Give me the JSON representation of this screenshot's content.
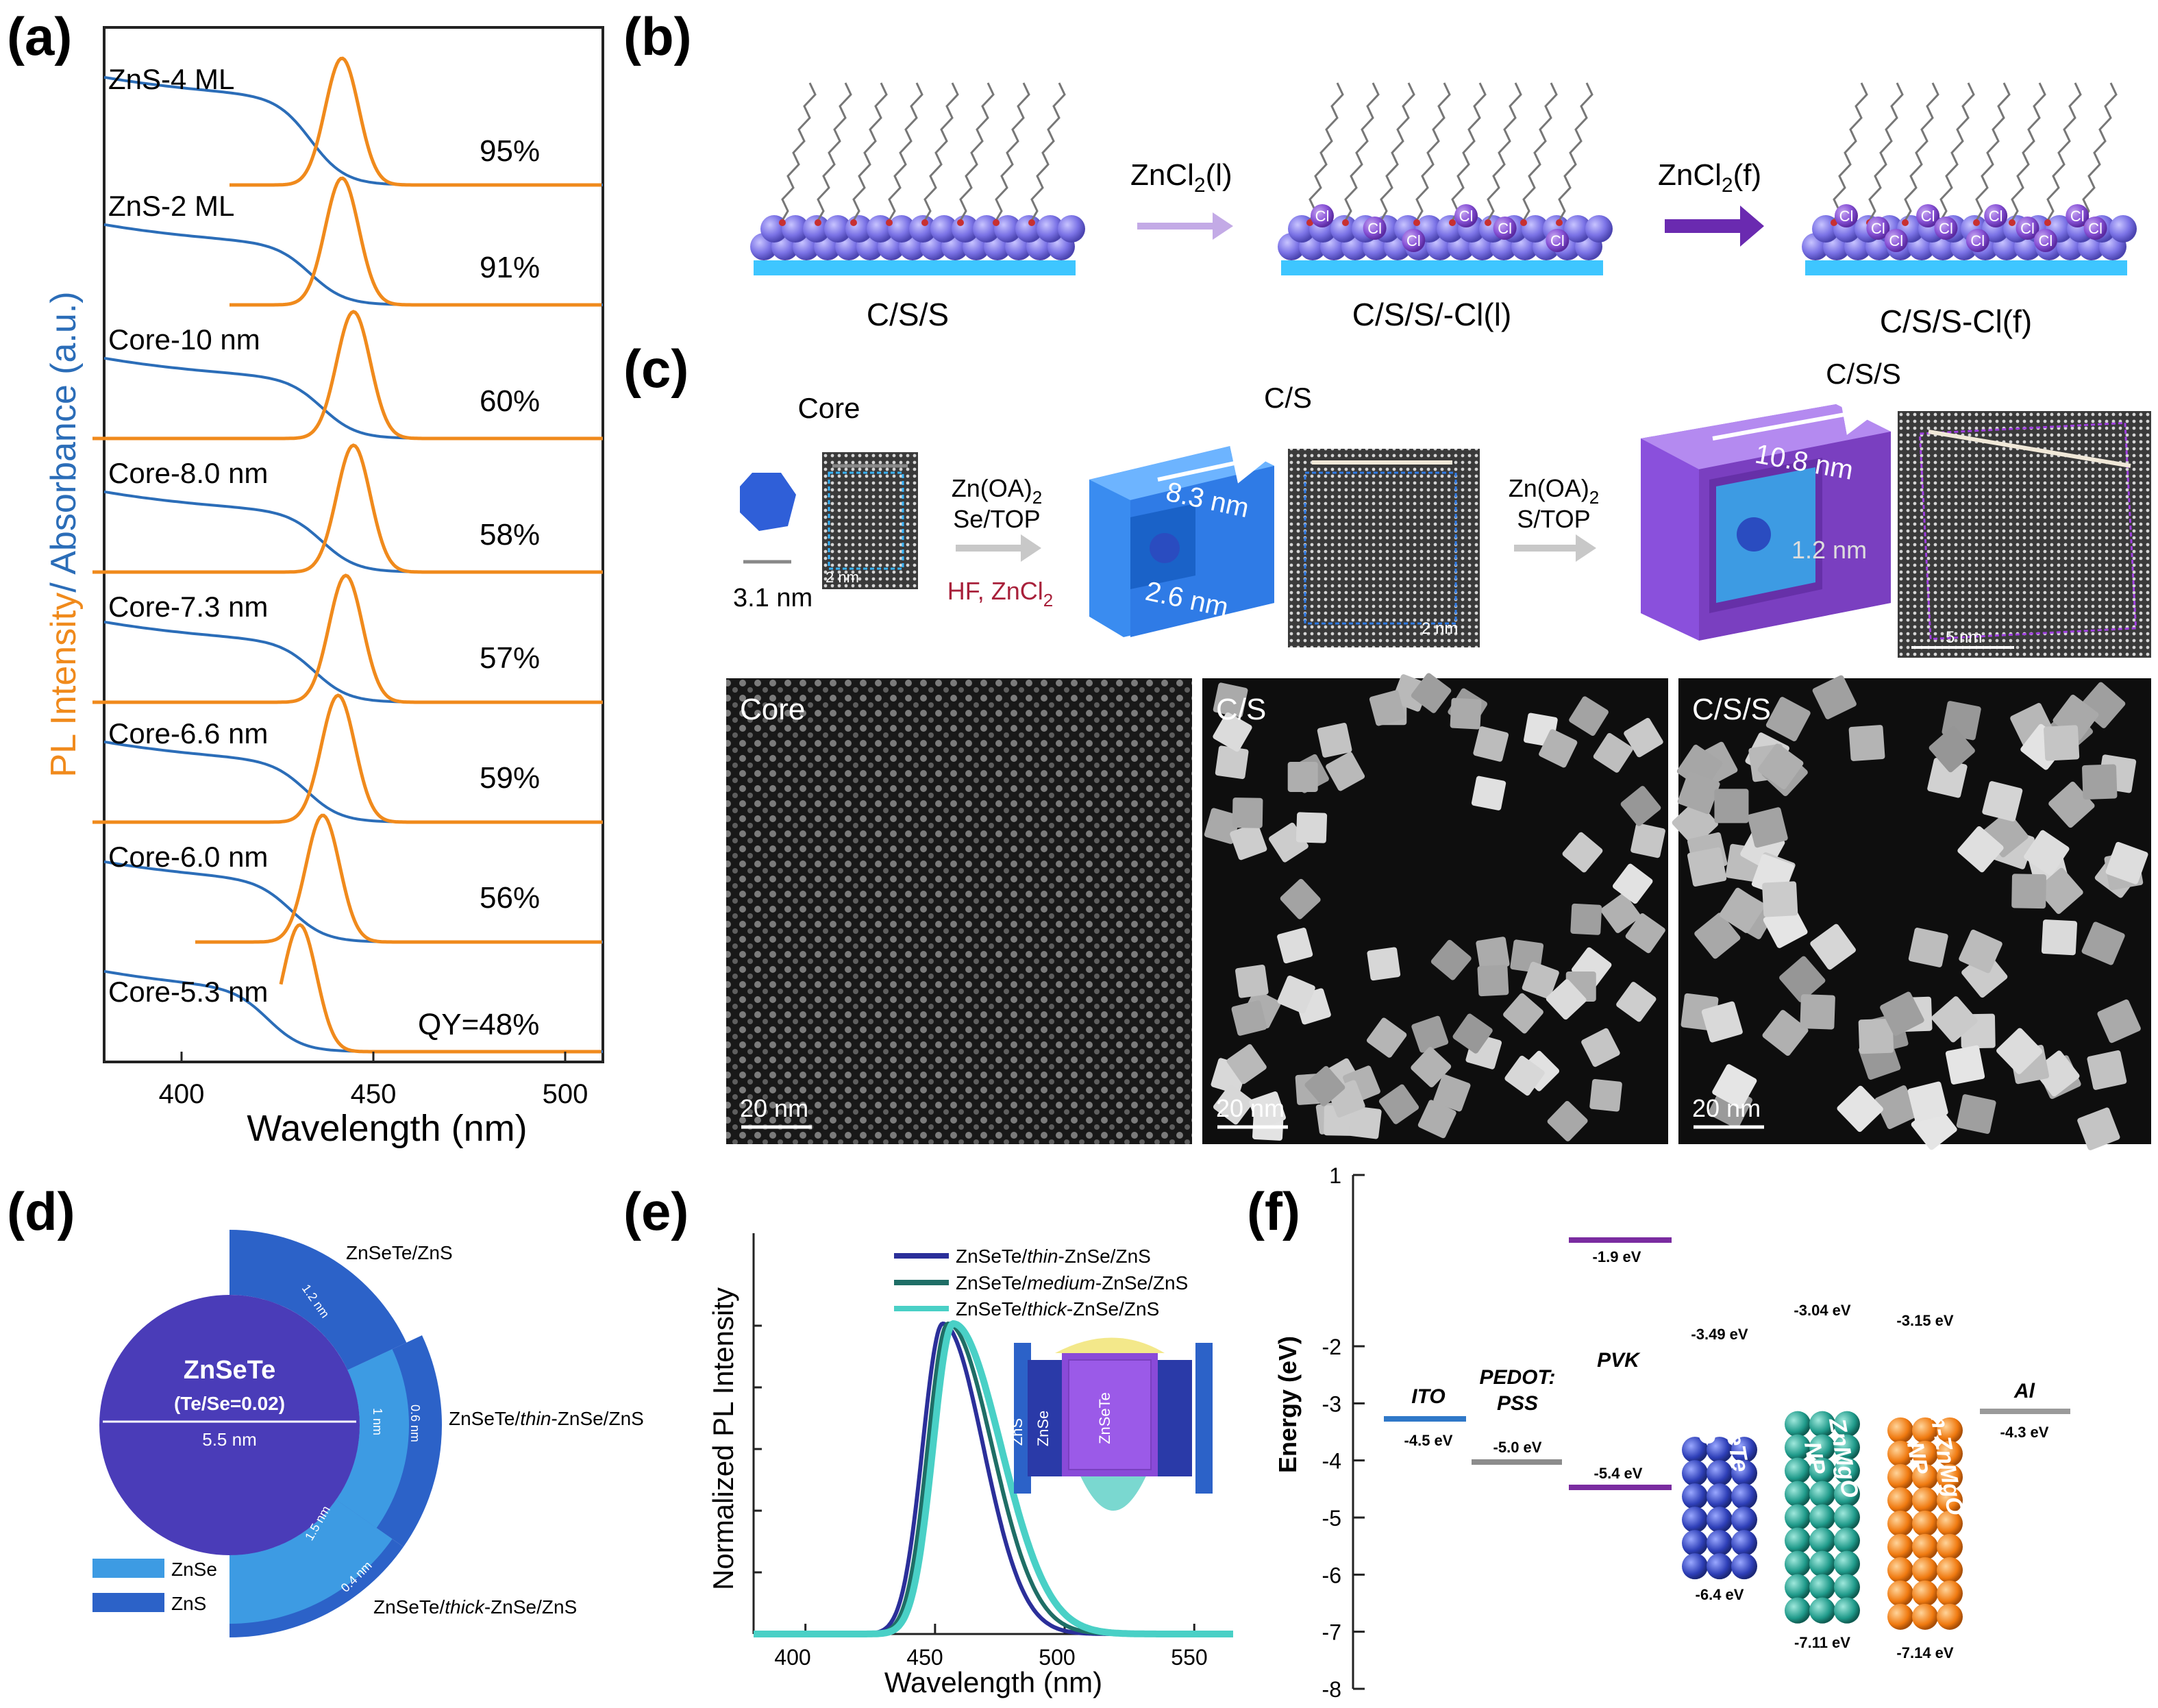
{
  "panel_labels": {
    "a": "(a)",
    "b": "(b)",
    "c": "(c)",
    "d": "(d)",
    "e": "(e)",
    "f": "(f)"
  },
  "colors": {
    "pl": "#f08a1c",
    "abs": "#2b6db8",
    "purple_shell": "#7a3fc0",
    "blue_shell": "#2f7be6",
    "zns_ring": "#2c62c8",
    "znse_ring": "#3d9be3",
    "core_disk": "#4a3cb8",
    "ito": "#2f78c8",
    "pedot": "#8c8c8c",
    "pvk": "#7a2ca0",
    "qd": "#2e3fb8",
    "znmgo": "#1f9a8a",
    "mznmgo": "#f07a10",
    "al": "#9a9a9a"
  },
  "panel_a": {
    "ylabel_pl": "PL Intensity",
    "ylabel_sep": "/ ",
    "ylabel_abs": "Absorbance (a.u.)",
    "xlabel": "Wavelength (nm)",
    "xticks": [
      "400",
      "450",
      "500"
    ],
    "samples": [
      {
        "name": "ZnS-4 ML",
        "qy": "95%"
      },
      {
        "name": "ZnS-2 ML",
        "qy": "91%"
      },
      {
        "name": "Core-10 nm",
        "qy": "60%"
      },
      {
        "name": "Core-8.0 nm",
        "qy": "58%"
      },
      {
        "name": "Core-7.3 nm",
        "qy": "57%"
      },
      {
        "name": "Core-6.6 nm",
        "qy": "59%"
      },
      {
        "name": "Core-6.0 nm",
        "qy": "56%"
      },
      {
        "name": "Core-5.3 nm",
        "qy": "QY=48%"
      }
    ]
  },
  "chart_data": [
    {
      "type": "line",
      "panel": "a",
      "xlabel": "Wavelength (nm)",
      "xlim": [
        380,
        510
      ],
      "series": [
        {
          "name": "ZnS-4 ML",
          "pl_peak_nm": 442,
          "qy": "95%"
        },
        {
          "name": "ZnS-2 ML",
          "pl_peak_nm": 442,
          "qy": "91%"
        },
        {
          "name": "Core-10 nm",
          "pl_peak_nm": 445,
          "qy": "60%"
        },
        {
          "name": "Core-8.0 nm",
          "pl_peak_nm": 445,
          "qy": "58%"
        },
        {
          "name": "Core-7.3 nm",
          "pl_peak_nm": 443,
          "qy": "57%"
        },
        {
          "name": "Core-6.6 nm",
          "pl_peak_nm": 441,
          "qy": "59%"
        },
        {
          "name": "Core-6.0 nm",
          "pl_peak_nm": 437,
          "qy": "56%"
        },
        {
          "name": "Core-5.3 nm",
          "pl_peak_nm": 431,
          "qy": "QY=48%"
        }
      ]
    },
    {
      "type": "line",
      "panel": "e",
      "xlabel": "Wavelength (nm)",
      "ylabel": "Normalized PL Intensity",
      "xlim": [
        380,
        565
      ],
      "series": [
        {
          "name": "ZnSeTe/thin-ZnSe/ZnS",
          "peak_nm": 453
        },
        {
          "name": "ZnSeTe/medium-ZnSe/ZnS",
          "peak_nm": 455
        },
        {
          "name": "ZnSeTe/thick-ZnSe/ZnS",
          "peak_nm": 457
        }
      ]
    },
    {
      "type": "bar",
      "panel": "f",
      "ylabel": "Energy (eV)",
      "ylim": [
        -8,
        1
      ],
      "levels": [
        {
          "name": "ITO",
          "level": -4.5
        },
        {
          "name": "PEDOT:PSS",
          "level": -5.0
        },
        {
          "name": "PVK",
          "lumo": -1.9,
          "homo": -5.4
        },
        {
          "name": "ZnSeTe QD",
          "lumo": -3.49,
          "homo": -6.4
        },
        {
          "name": "ZnMgO NP",
          "lumo": -3.04,
          "homo": -7.11
        },
        {
          "name": "m-ZnMgO NP",
          "lumo": -3.15,
          "homo": -7.14
        },
        {
          "name": "Al",
          "level": -4.3
        }
      ]
    }
  ],
  "panel_b": {
    "arrow1": "ZnCl",
    "arrow1_sub": "2",
    "arrow1_tail": "(l)",
    "arrow2": "ZnCl",
    "arrow2_sub": "2",
    "arrow2_tail": "(f)",
    "cl": "Cl",
    "labels": [
      "C/S/S",
      "C/S/S/-Cl(l)",
      "C/S/S-Cl(f)"
    ]
  },
  "panel_c": {
    "core": "Core",
    "cs": "C/S",
    "css": "C/S/S",
    "core_size": "3.1 nm",
    "scale_2nm": "2 nm",
    "step1_a": "Zn(OA)",
    "step1_a_sub": "2",
    "step1_b": "Se/TOP",
    "step1_c": "HF, ZnCl",
    "step1_c_sub": "2",
    "step2_a": "Zn(OA)",
    "step2_a_sub": "2",
    "step2_b": "S/TOP",
    "cs_size": "8.3 nm",
    "cs_core": "2.6 nm",
    "css_size": "10.8 nm",
    "css_shell": "1.2 nm",
    "scale_5nm": "5 nm",
    "tem_labels": [
      "Core",
      "C/S",
      "C/S/S"
    ],
    "tem_scale": "20 nm"
  },
  "panel_d": {
    "core": "ZnSeTe",
    "ratio": "(Te/Se=0.02)",
    "diam": "5.5 nm",
    "top": "ZnSeTe/ZnS",
    "mid_a": "ZnSeTe/",
    "mid_b": "thin",
    "mid_c": "-ZnSe/ZnS",
    "bot_a": "ZnSeTe/",
    "bot_b": "thick",
    "bot_c": "-ZnSe/ZnS",
    "d1": "1.2 nm",
    "d2": "1 nm",
    "d3": "0.6 nm",
    "d4": "1.5 nm",
    "d5": "0.4 nm",
    "legend": [
      "ZnSe",
      "ZnS"
    ]
  },
  "panel_e": {
    "ylabel": "Normalized PL Intensity",
    "xlabel": "Wavelength (nm)",
    "xticks": [
      "400",
      "450",
      "500",
      "550"
    ],
    "legend": [
      {
        "a": "ZnSeTe/",
        "b": "thin",
        "c": "-ZnSe/ZnS",
        "color": "#2b2f9a"
      },
      {
        "a": "ZnSeTe/",
        "b": "medium",
        "c": "-ZnSe/ZnS",
        "color": "#1f6e66"
      },
      {
        "a": "ZnSeTe/",
        "b": "thick",
        "c": "-ZnSe/ZnS",
        "color": "#49d0c6"
      }
    ],
    "inset": [
      "ZnS",
      "ZnSe",
      "ZnSeTe"
    ]
  },
  "panel_f": {
    "ylabel": "Energy (eV)",
    "yticks": [
      "1",
      "-2",
      "-3",
      "-4",
      "-5",
      "-6",
      "-7",
      "-8"
    ],
    "ito": "ITO",
    "ito_v": "-4.5 eV",
    "pedot_a": "PEDOT:",
    "pedot_b": "PSS",
    "pedot_v": "-5.0 eV",
    "pvk": "PVK",
    "pvk_l": "-1.9 eV",
    "pvk_h": "-5.4 eV",
    "qd_a": "ZnSeTe",
    "qd_b": "QD",
    "qd_l": "-3.49 eV",
    "qd_h": "-6.4 eV",
    "zm_a": "ZnMgO",
    "zm_b": "NP",
    "zm_l": "-3.04 eV",
    "zm_h": "-7.11 eV",
    "mz_a": "m-ZnMgO",
    "mz_b": "NP",
    "mz_l": "-3.15 eV",
    "mz_h": "-7.14 eV",
    "al": "Al",
    "al_v": "-4.3 eV"
  }
}
